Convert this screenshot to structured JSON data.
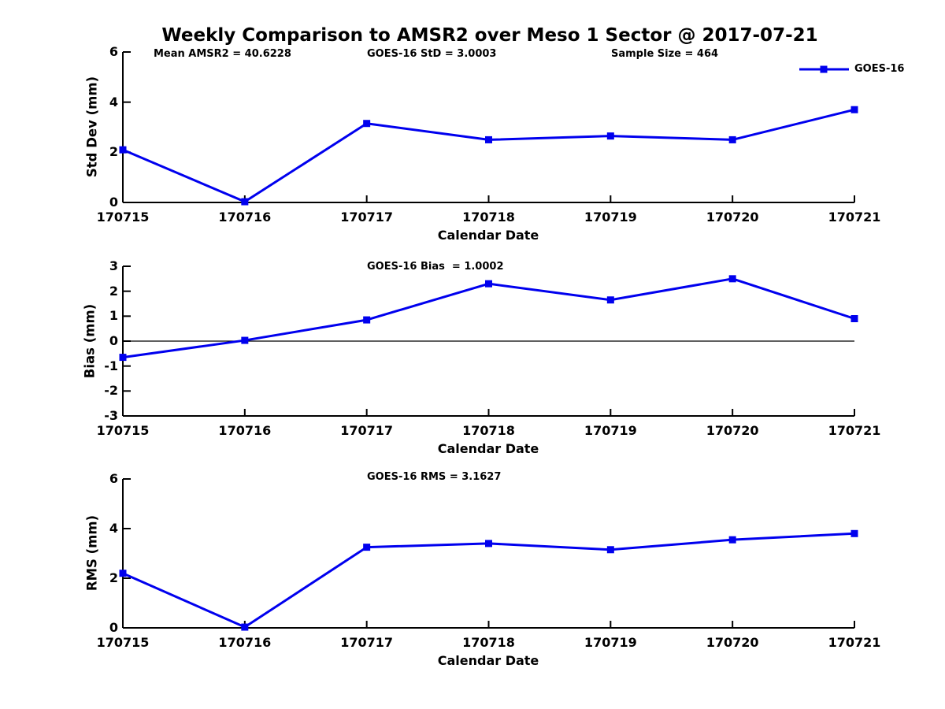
{
  "page": {
    "title": "Weekly Comparison to AMSR2 over Meso 1 Sector @ 2017-07-21",
    "background_color": "#ffffff",
    "series_color": "#0000ee",
    "axis_color": "#000000"
  },
  "legend": {
    "label": "GOES-16",
    "position": "top-right",
    "marker": "square",
    "color": "#0000ee"
  },
  "chart_data": [
    {
      "type": "line",
      "name": "std-dev-panel",
      "annotations": [
        "Mean AMSR2 = 40.6228",
        "GOES-16 StD = 3.0003",
        "Sample Size = 464"
      ],
      "stats": {
        "mean_amsr2": 40.6228,
        "goes16_std": 3.0003,
        "sample_size": 464
      },
      "categories": [
        "170715",
        "170716",
        "170717",
        "170718",
        "170719",
        "170720",
        "170721"
      ],
      "series": [
        {
          "name": "GOES-16",
          "values": [
            2.1,
            0.03,
            3.15,
            2.5,
            2.65,
            2.5,
            3.7
          ]
        }
      ],
      "xlabel": "Calendar Date",
      "ylabel": "Std Dev (mm)",
      "ylim": [
        0,
        6
      ],
      "yticks": [
        0,
        2,
        4,
        6
      ],
      "zero_line": false,
      "grid": false,
      "legend_visible": true
    },
    {
      "type": "line",
      "name": "bias-panel",
      "annotations": [
        "GOES-16 Bias  = 1.0002"
      ],
      "stats": {
        "goes16_bias": 1.0002
      },
      "categories": [
        "170715",
        "170716",
        "170717",
        "170718",
        "170719",
        "170720",
        "170721"
      ],
      "series": [
        {
          "name": "GOES-16",
          "values": [
            -0.65,
            0.03,
            0.85,
            2.3,
            1.65,
            2.5,
            0.9
          ]
        }
      ],
      "xlabel": "Calendar Date",
      "ylabel": "Bias (mm)",
      "ylim": [
        -3,
        3
      ],
      "yticks": [
        -3,
        -2,
        -1,
        0,
        1,
        2,
        3
      ],
      "zero_line": true,
      "grid": false,
      "legend_visible": false
    },
    {
      "type": "line",
      "name": "rms-panel",
      "annotations": [
        "GOES-16 RMS = 3.1627"
      ],
      "stats": {
        "goes16_rms": 3.1627
      },
      "categories": [
        "170715",
        "170716",
        "170717",
        "170718",
        "170719",
        "170720",
        "170721"
      ],
      "series": [
        {
          "name": "GOES-16",
          "values": [
            2.2,
            0.03,
            3.25,
            3.4,
            3.15,
            3.55,
            3.8
          ]
        }
      ],
      "xlabel": "Calendar Date",
      "ylabel": "RMS (mm)",
      "ylim": [
        0,
        6
      ],
      "yticks": [
        0,
        2,
        4,
        6
      ],
      "zero_line": false,
      "grid": false,
      "legend_visible": false
    }
  ]
}
